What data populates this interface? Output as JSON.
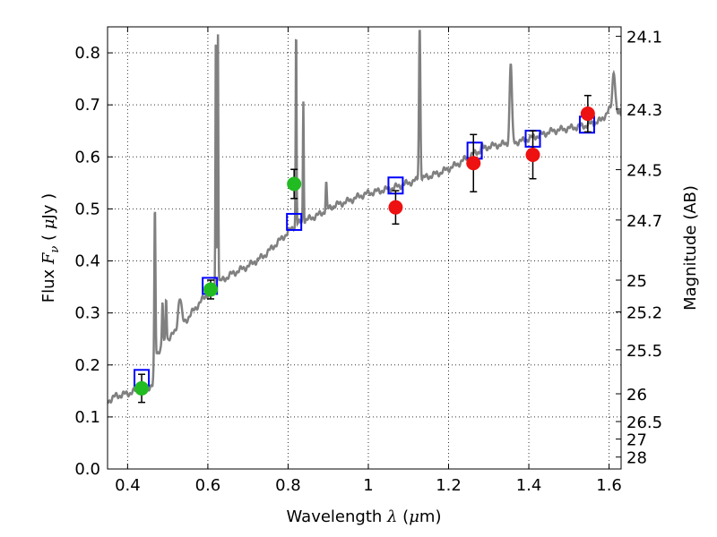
{
  "chart_data": {
    "type": "line",
    "xlabel": {
      "prefix": "Wavelength  ",
      "symbol": "λ",
      "open": " (",
      "unit_symbol": "μ",
      "unit": "m)"
    },
    "ylabel": {
      "prefix": "Flux  ",
      "symbol": "F",
      "subscript": "ν",
      "open": "  ( ",
      "unit_symbol": "μ",
      "unit": "Jy )"
    },
    "y2label": "Magnitude (AB)",
    "xlim": [
      0.35,
      1.63
    ],
    "ylim": [
      0.0,
      0.85
    ],
    "grid": true,
    "x_ticks": [
      {
        "value": 0.4,
        "label": "0.4"
      },
      {
        "value": 0.6,
        "label": "0.6"
      },
      {
        "value": 0.8,
        "label": "0.8"
      },
      {
        "value": 1.0,
        "label": "1"
      },
      {
        "value": 1.2,
        "label": "1.2"
      },
      {
        "value": 1.4,
        "label": "1.4"
      },
      {
        "value": 1.6,
        "label": "1.6"
      }
    ],
    "y_ticks": [
      {
        "value": 0.0,
        "label": "0.0"
      },
      {
        "value": 0.1,
        "label": "0.1"
      },
      {
        "value": 0.2,
        "label": "0.2"
      },
      {
        "value": 0.3,
        "label": "0.3"
      },
      {
        "value": 0.4,
        "label": "0.4"
      },
      {
        "value": 0.5,
        "label": "0.5"
      },
      {
        "value": 0.6,
        "label": "0.6"
      },
      {
        "value": 0.7,
        "label": "0.7"
      },
      {
        "value": 0.8,
        "label": "0.8"
      }
    ],
    "mag_ticks": [
      {
        "mag": 24.1,
        "label": "24.1"
      },
      {
        "mag": 24.3,
        "label": "24.3"
      },
      {
        "mag": 24.5,
        "label": "24.5"
      },
      {
        "mag": 24.7,
        "label": "24.7"
      },
      {
        "mag": 25.0,
        "label": "25"
      },
      {
        "mag": 25.2,
        "label": "25.2"
      },
      {
        "mag": 25.5,
        "label": "25.5"
      },
      {
        "mag": 26.0,
        "label": "26"
      },
      {
        "mag": 26.5,
        "label": "26.5"
      },
      {
        "mag": 27.0,
        "label": "27"
      },
      {
        "mag": 28.0,
        "label": "28"
      }
    ],
    "colors": {
      "spectrum": "#808080",
      "model_box": "#0000ff",
      "optical_points": "#22bb22",
      "nir_points": "#ee1111",
      "errorbar": "#000000"
    },
    "spectrum": {
      "continuum": [
        [
          0.35,
          0.13
        ],
        [
          0.37,
          0.14
        ],
        [
          0.4,
          0.145
        ],
        [
          0.44,
          0.155
        ],
        [
          0.462,
          0.16
        ],
        [
          0.47,
          0.22
        ],
        [
          0.5,
          0.25
        ],
        [
          0.53,
          0.27
        ],
        [
          0.56,
          0.3
        ],
        [
          0.58,
          0.32
        ],
        [
          0.61,
          0.345
        ],
        [
          0.63,
          0.36
        ],
        [
          0.66,
          0.375
        ],
        [
          0.7,
          0.39
        ],
        [
          0.74,
          0.41
        ],
        [
          0.78,
          0.44
        ],
        [
          0.82,
          0.47
        ],
        [
          0.85,
          0.48
        ],
        [
          0.88,
          0.49
        ],
        [
          0.91,
          0.505
        ],
        [
          0.95,
          0.515
        ],
        [
          0.98,
          0.525
        ],
        [
          1.0,
          0.53
        ],
        [
          1.03,
          0.535
        ],
        [
          1.06,
          0.54
        ],
        [
          1.1,
          0.55
        ],
        [
          1.14,
          0.56
        ],
        [
          1.18,
          0.57
        ],
        [
          1.22,
          0.585
        ],
        [
          1.26,
          0.605
        ],
        [
          1.3,
          0.62
        ],
        [
          1.34,
          0.625
        ],
        [
          1.38,
          0.63
        ],
        [
          1.42,
          0.64
        ],
        [
          1.46,
          0.65
        ],
        [
          1.5,
          0.655
        ],
        [
          1.54,
          0.66
        ],
        [
          1.58,
          0.67
        ],
        [
          1.6,
          0.69
        ],
        [
          1.63,
          0.68
        ]
      ],
      "lines": [
        {
          "x": 0.468,
          "peak": 0.5,
          "width": 0.002
        },
        {
          "x": 0.487,
          "peak": 0.32,
          "width": 0.002
        },
        {
          "x": 0.496,
          "peak": 0.33,
          "width": 0.002
        },
        {
          "x": 0.53,
          "peak": 0.33,
          "width": 0.006
        },
        {
          "x": 0.62,
          "peak": 0.85,
          "width": 0.0015
        },
        {
          "x": 0.625,
          "peak": 0.85,
          "width": 0.0015
        },
        {
          "x": 0.82,
          "peak": 0.85,
          "width": 0.0015
        },
        {
          "x": 0.838,
          "peak": 0.71,
          "width": 0.0015
        },
        {
          "x": 0.895,
          "peak": 0.55,
          "width": 0.002
        },
        {
          "x": 1.128,
          "peak": 0.85,
          "width": 0.0025
        },
        {
          "x": 1.283,
          "peak": 0.62,
          "width": 0.003
        },
        {
          "x": 1.355,
          "peak": 0.78,
          "width": 0.004
        },
        {
          "x": 1.612,
          "peak": 0.765,
          "width": 0.005
        }
      ]
    },
    "model_points": [
      {
        "x": 0.435,
        "y": 0.175
      },
      {
        "x": 0.605,
        "y": 0.352
      },
      {
        "x": 0.815,
        "y": 0.475
      },
      {
        "x": 1.068,
        "y": 0.545
      },
      {
        "x": 1.265,
        "y": 0.612
      },
      {
        "x": 1.41,
        "y": 0.635
      },
      {
        "x": 1.545,
        "y": 0.662
      }
    ],
    "series": [
      {
        "points": [
          {
            "x": 0.435,
            "y": 0.155,
            "err": 0.027
          },
          {
            "x": 0.607,
            "y": 0.345,
            "err": 0.018
          },
          {
            "x": 0.815,
            "y": 0.548,
            "err": 0.028
          }
        ]
      },
      {
        "points": [
          {
            "x": 1.068,
            "y": 0.503,
            "err": 0.032
          },
          {
            "x": 1.262,
            "y": 0.588,
            "err": 0.055
          },
          {
            "x": 1.41,
            "y": 0.604,
            "err": 0.046
          },
          {
            "x": 1.547,
            "y": 0.683,
            "err": 0.035
          }
        ]
      }
    ]
  }
}
